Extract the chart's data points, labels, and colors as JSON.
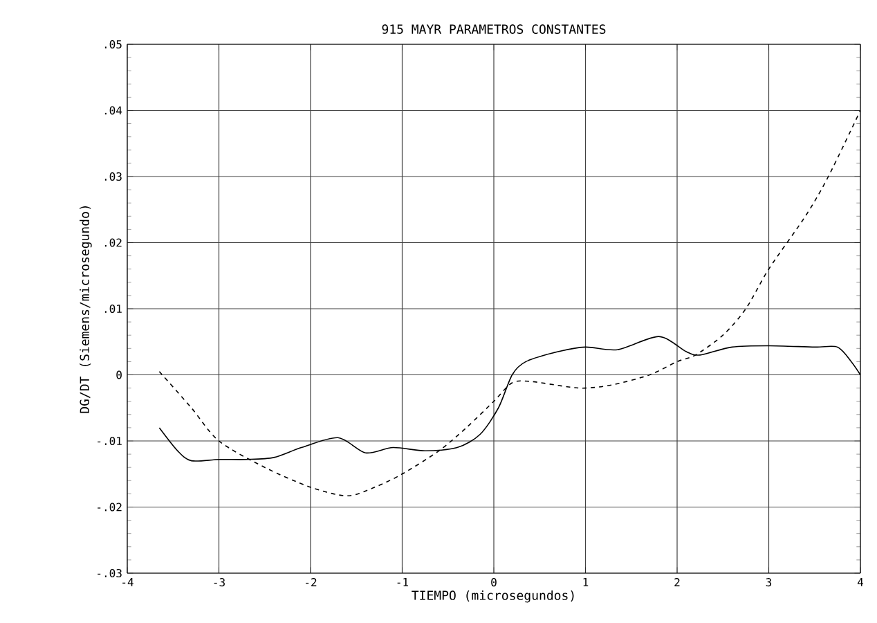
{
  "chart_data": {
    "type": "line",
    "title": "915 MAYR PARAMETROS CONSTANTES",
    "xlabel": "TIEMPO (microsegundos)",
    "ylabel": "DG/DT (Siemens/microsegundo)",
    "xlim": [
      -4,
      4
    ],
    "ylim": [
      -0.03,
      0.05
    ],
    "xticks": [
      -4,
      -3,
      -2,
      -1,
      0,
      1,
      2,
      3,
      4
    ],
    "yticks": [
      {
        "value": -0.03,
        "label": "-.03"
      },
      {
        "value": -0.02,
        "label": "-.02"
      },
      {
        "value": -0.01,
        "label": "-.01"
      },
      0,
      {
        "value": 0.01,
        "label": ".01"
      },
      {
        "value": 0.02,
        "label": ".02"
      },
      {
        "value": 0.03,
        "label": ".03"
      },
      {
        "value": 0.04,
        "label": ".04"
      },
      {
        "value": 0.05,
        "label": ".05"
      }
    ],
    "grid": true,
    "series": [
      {
        "color": "#000000",
        "line_style": "solid",
        "x": [
          -3.65,
          -3.45,
          -3.3,
          -3.0,
          -2.7,
          -2.4,
          -2.1,
          -1.7,
          -1.4,
          -1.1,
          -0.75,
          -0.4,
          -0.15,
          0.05,
          0.2,
          0.35,
          0.7,
          1.0,
          1.35,
          1.8,
          2.1,
          2.25,
          2.6,
          3.0,
          3.5,
          3.75,
          3.9,
          4.0
        ],
        "values": [
          -0.008,
          -0.0115,
          -0.013,
          -0.0128,
          -0.0128,
          -0.0125,
          -0.011,
          -0.0095,
          -0.0118,
          -0.011,
          -0.0115,
          -0.011,
          -0.009,
          -0.005,
          0.0,
          0.002,
          0.0035,
          0.0042,
          0.0038,
          0.0058,
          0.0035,
          0.003,
          0.0042,
          0.0044,
          0.0042,
          0.0042,
          0.002,
          0.0
        ]
      },
      {
        "color": "#000000",
        "line_style": "dashed",
        "x": [
          -3.65,
          -3.3,
          -3.0,
          -2.5,
          -2.0,
          -1.6,
          -1.3,
          -1.0,
          -0.6,
          -0.3,
          0.0,
          0.2,
          0.4,
          0.8,
          1.0,
          1.3,
          1.7,
          2.0,
          2.2,
          2.5,
          2.75,
          3.0,
          3.4,
          3.65,
          4.0
        ],
        "values": [
          0.0005,
          -0.005,
          -0.01,
          -0.014,
          -0.017,
          -0.0183,
          -0.017,
          -0.015,
          -0.0115,
          -0.008,
          -0.004,
          -0.0012,
          -0.001,
          -0.0018,
          -0.002,
          -0.0015,
          0.0,
          0.002,
          0.003,
          0.006,
          0.01,
          0.016,
          0.024,
          0.03,
          0.04
        ]
      }
    ]
  }
}
